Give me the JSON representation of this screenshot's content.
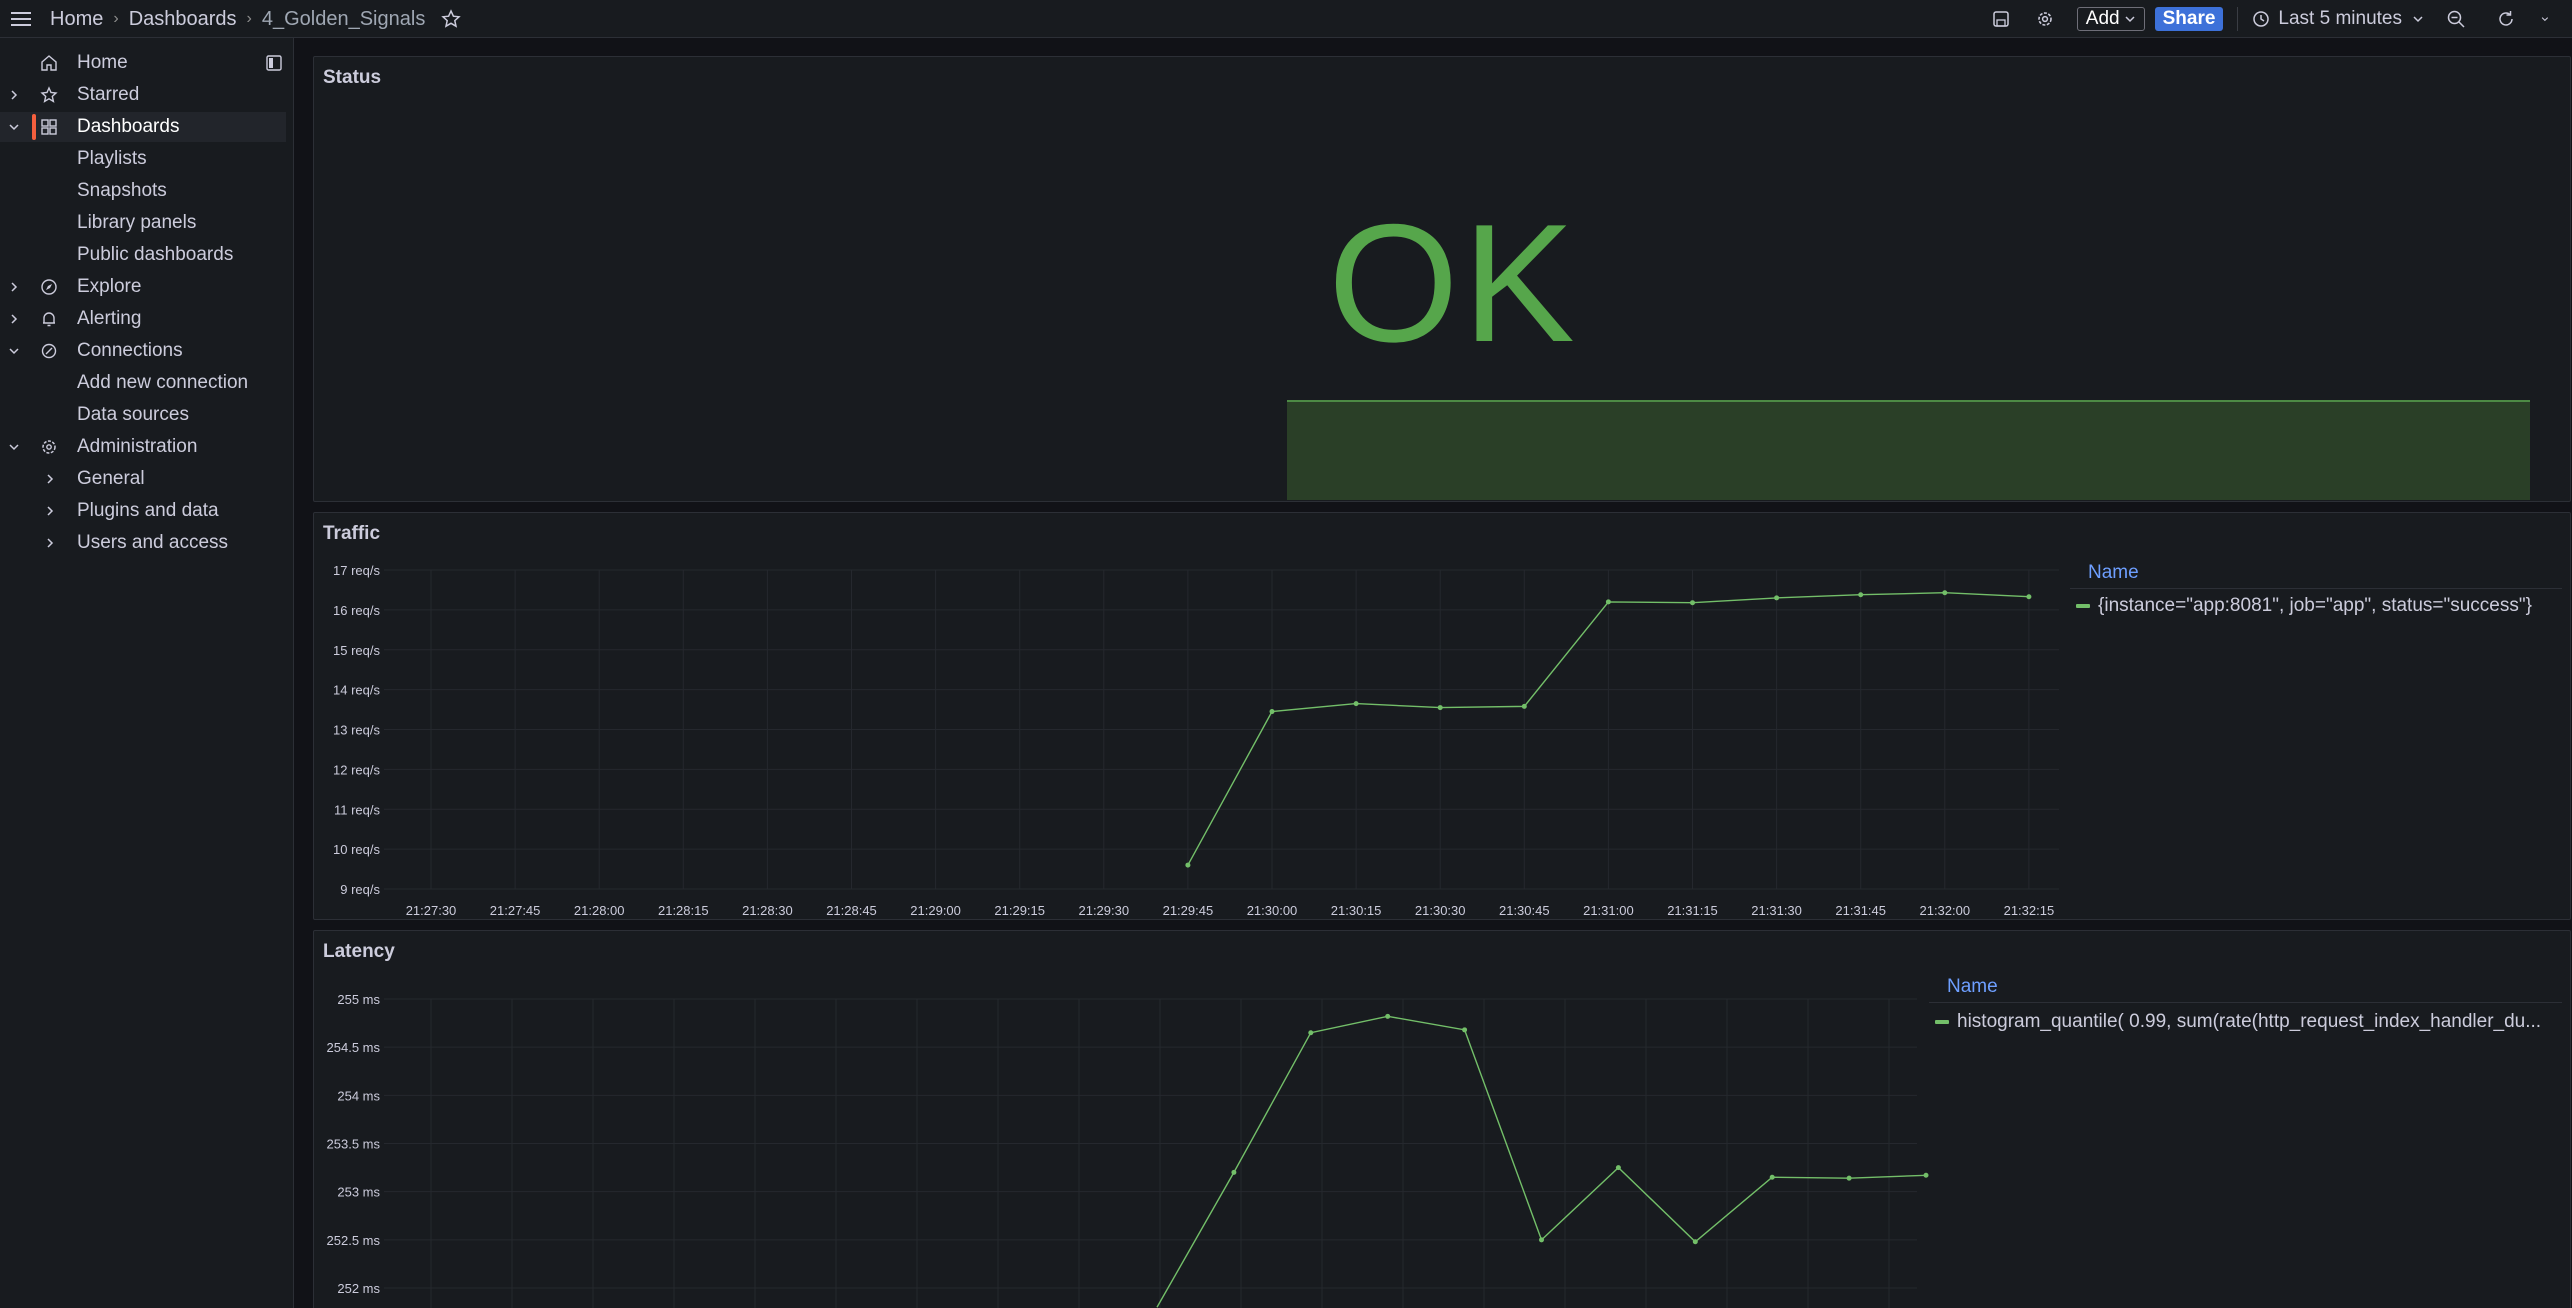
{
  "breadcrumb": {
    "home": "Home",
    "dashboards": "Dashboards",
    "current": "4_Golden_Signals"
  },
  "toolbar": {
    "add_label": "Add",
    "share_label": "Share",
    "time_range": "Last 5 minutes"
  },
  "sidebar": {
    "items": [
      {
        "label": "Home",
        "icon": "home-icon"
      },
      {
        "label": "Starred",
        "icon": "star-icon"
      },
      {
        "label": "Dashboards",
        "icon": "apps-icon"
      },
      {
        "label": "Playlists"
      },
      {
        "label": "Snapshots"
      },
      {
        "label": "Library panels"
      },
      {
        "label": "Public dashboards"
      },
      {
        "label": "Explore",
        "icon": "compass-icon"
      },
      {
        "label": "Alerting",
        "icon": "bell-icon"
      },
      {
        "label": "Connections",
        "icon": "link-icon"
      },
      {
        "label": "Add new connection"
      },
      {
        "label": "Data sources"
      },
      {
        "label": "Administration",
        "icon": "cog-icon"
      },
      {
        "label": "General"
      },
      {
        "label": "Plugins and data"
      },
      {
        "label": "Users and access"
      }
    ]
  },
  "panels": {
    "status": {
      "title": "Status",
      "value": "OK",
      "color": "#56a64b"
    },
    "traffic": {
      "title": "Traffic",
      "legend_header": "Name",
      "legend_entry": "{instance=\"app:8081\", job=\"app\", status=\"success\"}"
    },
    "latency": {
      "title": "Latency",
      "legend_header": "Name",
      "legend_entry": "histogram_quantile( 0.99, sum(rate(http_request_index_handler_du..."
    }
  },
  "chart_data": [
    {
      "type": "line",
      "series_color": "#73bf69",
      "y_ticks": [
        "9 req/s",
        "10 req/s",
        "11 req/s",
        "12 req/s",
        "13 req/s",
        "14 req/s",
        "15 req/s",
        "16 req/s",
        "17 req/s"
      ],
      "x_ticks": [
        "21:27:30",
        "21:27:45",
        "21:28:00",
        "21:28:15",
        "21:28:30",
        "21:28:45",
        "21:29:00",
        "21:29:15",
        "21:29:30",
        "21:29:45",
        "21:30:00",
        "21:30:15",
        "21:30:30",
        "21:30:45",
        "21:31:00",
        "21:31:15",
        "21:31:30",
        "21:31:45",
        "21:32:00",
        "21:32:15"
      ],
      "ylim": [
        9,
        17
      ],
      "x": [
        "21:29:45",
        "21:30:00",
        "21:30:15",
        "21:30:30",
        "21:30:45",
        "21:31:00",
        "21:31:15",
        "21:31:30",
        "21:31:45",
        "21:32:00",
        "21:32:15"
      ],
      "values": [
        9.6,
        13.45,
        13.65,
        13.55,
        13.58,
        16.2,
        16.18,
        16.3,
        16.38,
        16.43,
        16.33
      ]
    },
    {
      "type": "line",
      "series_color": "#73bf69",
      "y_ticks": [
        "252 ms",
        "252.5 ms",
        "253 ms",
        "253.5 ms",
        "254 ms",
        "254.5 ms",
        "255 ms"
      ],
      "ylim": [
        252,
        255
      ],
      "values": [
        251.8,
        253.2,
        254.65,
        254.82,
        254.68,
        252.5,
        253.25,
        252.48,
        253.15,
        253.14,
        253.17
      ]
    }
  ]
}
